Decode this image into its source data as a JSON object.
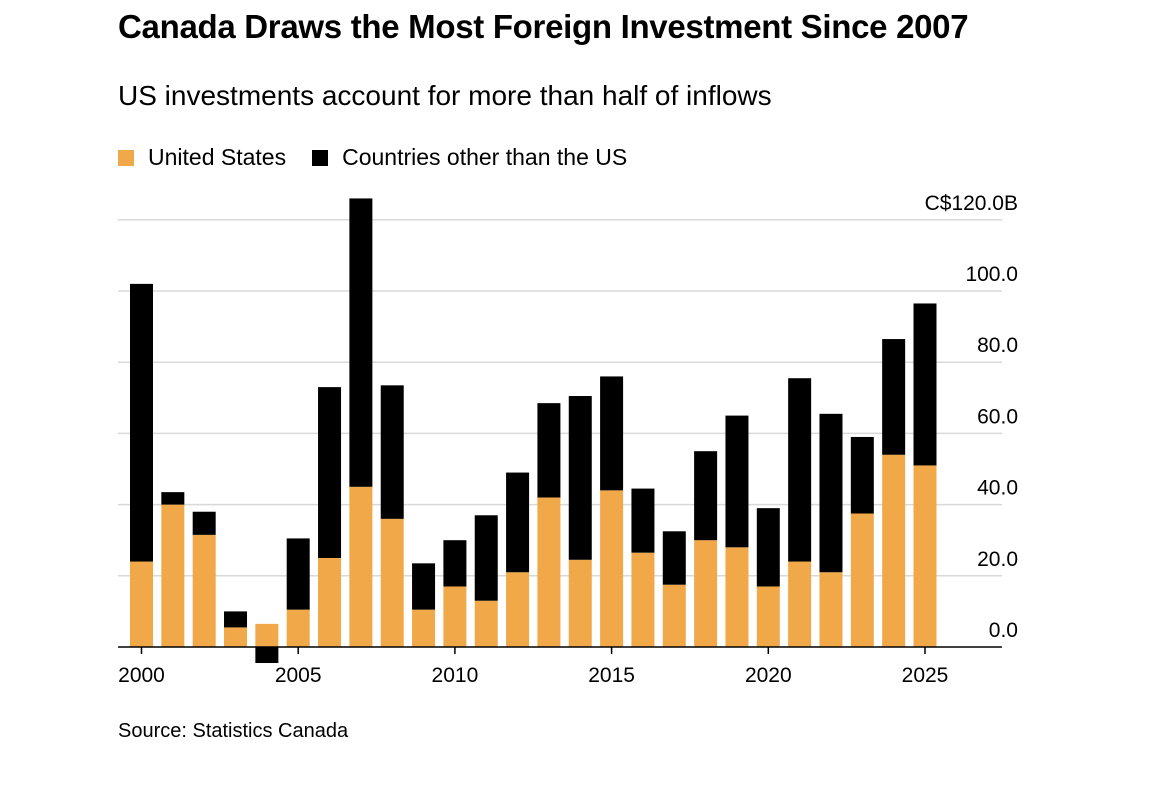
{
  "title": "Canada Draws the Most Foreign Investment Since 2007",
  "subtitle": "US investments account for more than half of inflows",
  "source": "Source: Statistics Canada",
  "colors": {
    "us": "#F0A848",
    "other": "#000000",
    "grid": "#d9d9d9",
    "axis": "#000000"
  },
  "chart_data": {
    "type": "bar",
    "stacked": true,
    "title": "Canada Draws the Most Foreign Investment Since 2007",
    "subtitle": "US investments account for more than half of inflows",
    "categories": [
      2000,
      2001,
      2002,
      2003,
      2004,
      2005,
      2006,
      2007,
      2008,
      2009,
      2010,
      2011,
      2012,
      2013,
      2014,
      2015,
      2016,
      2017,
      2018,
      2019,
      2020,
      2021,
      2022,
      2023,
      2024,
      2025
    ],
    "series": [
      {
        "name": "United States",
        "values": [
          24,
          40,
          31.5,
          5.5,
          6.5,
          10.5,
          25,
          45,
          36,
          10.5,
          17,
          13,
          21,
          42,
          24.5,
          44,
          26.5,
          17.5,
          30,
          28,
          17,
          24,
          21,
          37.5,
          54,
          51
        ]
      },
      {
        "name": "Countries other than the US",
        "values": [
          78,
          3.5,
          6.5,
          4.5,
          -4.5,
          20,
          48,
          81,
          37.5,
          13,
          13,
          24,
          28,
          26.5,
          46,
          32,
          18,
          15,
          25,
          37,
          22,
          51.5,
          44.5,
          21.5,
          32.5,
          45.5
        ]
      }
    ],
    "ylim": [
      -4.5,
      126
    ],
    "yticks": [
      0,
      20,
      40,
      60,
      80,
      100,
      120
    ],
    "ytick_labels": [
      "0.0",
      "20.0",
      "40.0",
      "60.0",
      "80.0",
      "100.0",
      "C$120.0B"
    ],
    "xtick_labels": [
      "2000",
      "2005",
      "2010",
      "2015",
      "2020",
      "2025"
    ],
    "xlabel": "",
    "ylabel": "",
    "grid": true,
    "legend": "top-left"
  }
}
